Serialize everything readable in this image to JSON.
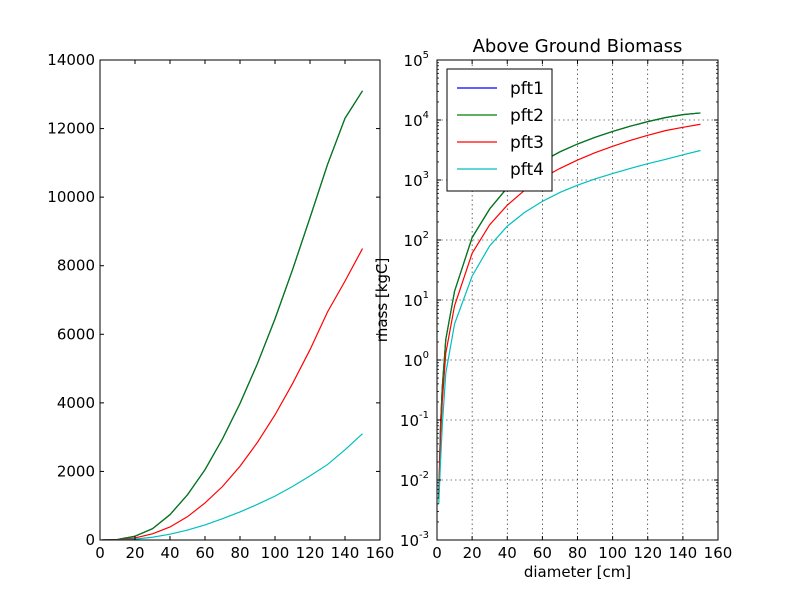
{
  "chart_data": [
    {
      "type": "line",
      "title": "",
      "xlabel": "",
      "ylabel": "",
      "xlim": [
        0,
        160
      ],
      "ylim": [
        0,
        14000
      ],
      "x_ticks": [
        0,
        20,
        40,
        60,
        80,
        100,
        120,
        140,
        160
      ],
      "y_ticks": [
        0,
        2000,
        4000,
        6000,
        8000,
        10000,
        12000,
        14000
      ],
      "grid": false,
      "x": [
        1,
        10,
        20,
        30,
        40,
        50,
        60,
        70,
        80,
        90,
        100,
        110,
        120,
        130,
        140,
        150
      ],
      "series": [
        {
          "name": "pft1",
          "color": "#0000ff",
          "values": [
            0.005,
            14,
            110,
            330,
            740,
            1320,
            2050,
            2950,
            3980,
            5150,
            6450,
            7880,
            9400,
            10950,
            12300,
            13100
          ]
        },
        {
          "name": "pft2",
          "color": "#008000",
          "values": [
            0.005,
            14,
            110,
            330,
            740,
            1320,
            2050,
            2950,
            3980,
            5150,
            6450,
            7880,
            9400,
            10950,
            12300,
            13100
          ]
        },
        {
          "name": "pft3",
          "color": "#ff0000",
          "values": [
            0.005,
            8,
            60,
            180,
            380,
            680,
            1080,
            1560,
            2150,
            2850,
            3650,
            4560,
            5550,
            6650,
            7550,
            8500
          ]
        },
        {
          "name": "pft4",
          "color": "#00bfbf",
          "values": [
            0.004,
            4,
            25,
            80,
            170,
            290,
            440,
            620,
            820,
            1040,
            1280,
            1560,
            1870,
            2200,
            2630,
            3100
          ]
        }
      ]
    },
    {
      "type": "line",
      "title": "Above Ground Biomass",
      "xlabel": "diameter [cm]",
      "ylabel": "mass [kgC]",
      "xlim": [
        0,
        160
      ],
      "ylim": [
        0.001,
        100000
      ],
      "yscale": "log",
      "x_ticks": [
        0,
        20,
        40,
        60,
        80,
        100,
        120,
        140,
        160
      ],
      "y_ticks": [
        {
          "base": "10",
          "exp": "-3"
        },
        {
          "base": "10",
          "exp": "-2"
        },
        {
          "base": "10",
          "exp": "-1"
        },
        {
          "base": "10",
          "exp": "0"
        },
        {
          "base": "10",
          "exp": "1"
        },
        {
          "base": "10",
          "exp": "2"
        },
        {
          "base": "10",
          "exp": "3"
        },
        {
          "base": "10",
          "exp": "4"
        },
        {
          "base": "10",
          "exp": "5"
        }
      ],
      "grid": true,
      "legend": {
        "position": "top-left",
        "entries": [
          "pft1",
          "pft2",
          "pft3",
          "pft4"
        ]
      },
      "x": [
        1,
        2,
        3,
        5,
        10,
        20,
        30,
        40,
        50,
        60,
        70,
        80,
        90,
        100,
        110,
        120,
        130,
        140,
        150
      ],
      "series": [
        {
          "name": "pft1",
          "color": "#0000ff",
          "values": [
            0.005,
            0.08,
            0.35,
            2.2,
            14,
            110,
            330,
            740,
            1320,
            2050,
            2950,
            3980,
            5150,
            6450,
            7880,
            9400,
            10950,
            12300,
            13100
          ]
        },
        {
          "name": "pft2",
          "color": "#008000",
          "values": [
            0.005,
            0.08,
            0.35,
            2.2,
            14,
            110,
            330,
            740,
            1320,
            2050,
            2950,
            3980,
            5150,
            6450,
            7880,
            9400,
            10950,
            12300,
            13100
          ]
        },
        {
          "name": "pft3",
          "color": "#ff0000",
          "values": [
            0.005,
            0.05,
            0.2,
            1.3,
            8,
            60,
            180,
            380,
            680,
            1080,
            1560,
            2150,
            2850,
            3650,
            4560,
            5550,
            6650,
            7550,
            8500
          ]
        },
        {
          "name": "pft4",
          "color": "#00bfbf",
          "values": [
            0.004,
            0.02,
            0.08,
            0.6,
            4,
            25,
            80,
            170,
            290,
            440,
            620,
            820,
            1040,
            1280,
            1560,
            1870,
            2200,
            2630,
            3100
          ]
        }
      ]
    }
  ]
}
